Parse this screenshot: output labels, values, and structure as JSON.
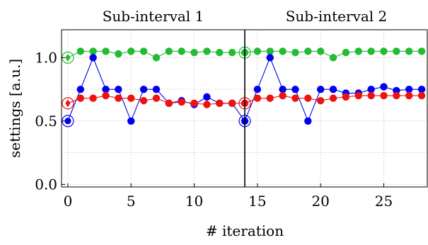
{
  "chart_data": {
    "type": "scatter",
    "xlabel": "# iteration",
    "ylabel": "settings [a.u.]",
    "xlim": [
      -0.5,
      28.5
    ],
    "ylim": [
      -0.02,
      1.22
    ],
    "x_ticks": [
      0,
      5,
      10,
      15,
      20,
      25
    ],
    "y_ticks": [
      0.0,
      0.5,
      1.0
    ],
    "y_tick_labels": [
      "0.0",
      "0.5",
      "1.0"
    ],
    "grid": true,
    "subintervals": [
      {
        "label": "Sub-interval 1",
        "x_start": -0.5,
        "x_end": 14
      },
      {
        "label": "Sub-interval 2",
        "x_start": 14,
        "x_end": 28.5
      }
    ],
    "divider_x": 14,
    "series": [
      {
        "color": "#22bb33",
        "x": [
          0,
          1,
          2,
          3,
          4,
          5,
          6,
          7,
          8,
          9,
          10,
          11,
          12,
          13,
          14,
          15,
          16,
          17,
          18,
          19,
          20,
          21,
          22,
          23,
          24,
          25,
          26,
          27,
          28
        ],
        "values": [
          1.0,
          1.05,
          1.05,
          1.05,
          1.03,
          1.05,
          1.05,
          1.0,
          1.05,
          1.05,
          1.04,
          1.05,
          1.04,
          1.04,
          1.04,
          1.05,
          1.05,
          1.05,
          1.04,
          1.05,
          1.05,
          1.0,
          1.04,
          1.05,
          1.05,
          1.05,
          1.05,
          1.05,
          1.05
        ]
      },
      {
        "color": "#0000ee",
        "x": [
          0,
          1,
          2,
          3,
          4,
          5,
          6,
          7,
          8,
          9,
          10,
          11,
          12,
          13,
          14,
          15,
          16,
          17,
          18,
          19,
          20,
          21,
          22,
          23,
          24,
          25,
          26,
          27,
          28
        ],
        "values": [
          0.5,
          0.75,
          1.0,
          0.75,
          0.75,
          0.5,
          0.75,
          0.75,
          0.64,
          0.66,
          0.63,
          0.69,
          0.64,
          0.64,
          0.5,
          0.75,
          1.0,
          0.75,
          0.75,
          0.5,
          0.75,
          0.75,
          0.72,
          0.72,
          0.75,
          0.77,
          0.74,
          0.75,
          0.75
        ]
      },
      {
        "color": "#ee1111",
        "x": [
          0,
          1,
          2,
          3,
          4,
          5,
          6,
          7,
          8,
          9,
          10,
          11,
          12,
          13,
          14,
          15,
          16,
          17,
          18,
          19,
          20,
          21,
          22,
          23,
          24,
          25,
          26,
          27,
          28
        ],
        "values": [
          0.64,
          0.68,
          0.68,
          0.7,
          0.68,
          0.68,
          0.66,
          0.68,
          0.64,
          0.65,
          0.64,
          0.63,
          0.64,
          0.64,
          0.64,
          0.68,
          0.68,
          0.7,
          0.68,
          0.68,
          0.66,
          0.68,
          0.69,
          0.7,
          0.7,
          0.7,
          0.7,
          0.7,
          0.7
        ]
      }
    ],
    "initial_markers": [
      {
        "x": 0,
        "series": 0,
        "shape": "diamond"
      },
      {
        "x": 0,
        "series": 1,
        "shape": "circle-dot"
      },
      {
        "x": 0,
        "series": 2,
        "shape": "diamond"
      },
      {
        "x": 14,
        "series": 0,
        "shape": "circle-dot"
      },
      {
        "x": 14,
        "series": 1,
        "shape": "circle-dot"
      },
      {
        "x": 14,
        "series": 2,
        "shape": "circle-dot"
      }
    ]
  }
}
